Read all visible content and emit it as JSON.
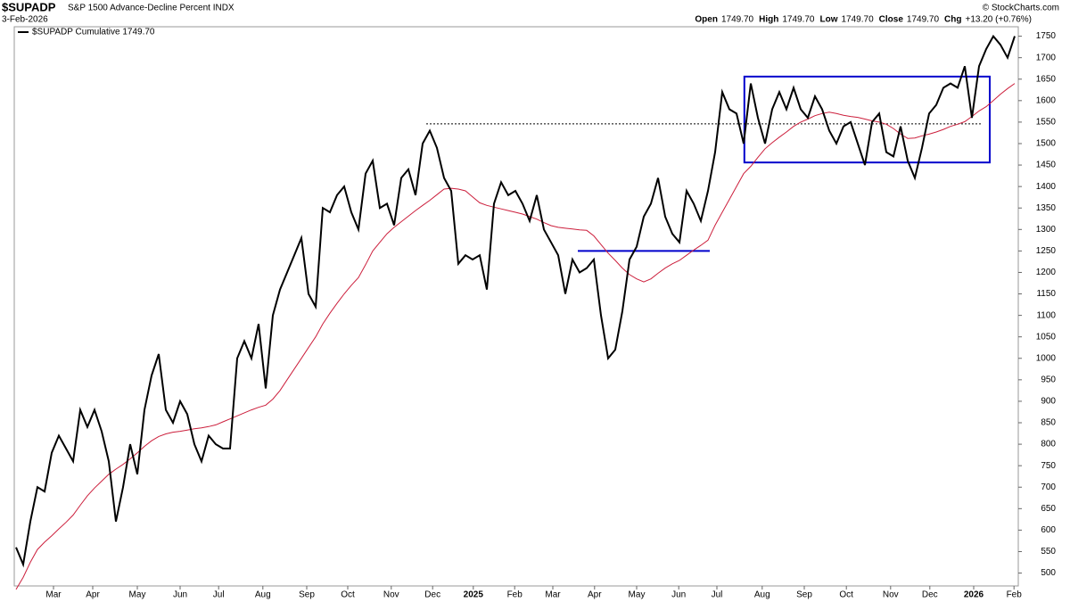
{
  "header": {
    "symbol": "$SUPADP",
    "description": "S&P 1500 Advance-Decline Percent INDX",
    "date": "3-Feb-2026",
    "quote": [
      {
        "label": "Open",
        "value": "1749.70"
      },
      {
        "label": "High",
        "value": "1749.70"
      },
      {
        "label": "Low",
        "value": "1749.70"
      },
      {
        "label": "Close",
        "value": "1749.70"
      },
      {
        "label": "Chg",
        "value": "+13.20 (+0.76%)"
      }
    ],
    "credit": "© StockCharts.com"
  },
  "chart_data": {
    "type": "line",
    "series": [
      {
        "name": "$SUPADP Cumulative 1749.70",
        "color": "#000000",
        "values": [
          560,
          520,
          620,
          700,
          690,
          780,
          820,
          790,
          760,
          880,
          840,
          880,
          830,
          760,
          620,
          700,
          800,
          730,
          880,
          960,
          1010,
          880,
          850,
          900,
          870,
          800,
          760,
          820,
          800,
          790,
          790,
          1000,
          1040,
          1000,
          1080,
          930,
          1100,
          1160,
          1200,
          1240,
          1280,
          1150,
          1120,
          1350,
          1340,
          1380,
          1400,
          1340,
          1300,
          1430,
          1460,
          1350,
          1360,
          1310,
          1420,
          1440,
          1380,
          1500,
          1530,
          1490,
          1420,
          1390,
          1220,
          1240,
          1230,
          1240,
          1160,
          1360,
          1410,
          1380,
          1390,
          1360,
          1320,
          1380,
          1300,
          1270,
          1240,
          1150,
          1230,
          1200,
          1210,
          1230,
          1100,
          1000,
          1020,
          1110,
          1230,
          1260,
          1330,
          1360,
          1420,
          1330,
          1290,
          1270,
          1390,
          1360,
          1320,
          1390,
          1480,
          1620,
          1580,
          1570,
          1500,
          1640,
          1560,
          1500,
          1580,
          1620,
          1580,
          1630,
          1580,
          1560,
          1610,
          1580,
          1530,
          1500,
          1540,
          1550,
          1500,
          1450,
          1550,
          1570,
          1480,
          1470,
          1540,
          1460,
          1420,
          1490,
          1570,
          1590,
          1630,
          1640,
          1630,
          1680,
          1560,
          1680,
          1720,
          1750,
          1730,
          1700,
          1750
        ]
      },
      {
        "color": "#cc1f3c",
        "values": [
          462,
          490,
          525,
          555,
          572,
          587,
          603,
          618,
          635,
          658,
          680,
          698,
          714,
          730,
          742,
          753,
          766,
          780,
          795,
          808,
          818,
          824,
          828,
          830,
          833,
          836,
          838,
          841,
          845,
          852,
          859,
          866,
          873,
          880,
          886,
          891,
          905,
          925,
          950,
          975,
          1000,
          1025,
          1050,
          1080,
          1105,
          1128,
          1150,
          1170,
          1188,
          1218,
          1250,
          1270,
          1290,
          1305,
          1318,
          1331,
          1344,
          1356,
          1368,
          1381,
          1394,
          1396,
          1394,
          1390,
          1376,
          1362,
          1356,
          1352,
          1348,
          1344,
          1340,
          1336,
          1330,
          1324,
          1316,
          1309,
          1305,
          1303,
          1301,
          1299,
          1298,
          1285,
          1265,
          1245,
          1228,
          1210,
          1195,
          1185,
          1178,
          1185,
          1198,
          1210,
          1220,
          1228,
          1240,
          1252,
          1263,
          1275,
          1310,
          1340,
          1370,
          1400,
          1430,
          1447,
          1468,
          1488,
          1502,
          1515,
          1527,
          1540,
          1550,
          1557,
          1565,
          1570,
          1573,
          1570,
          1566,
          1563,
          1561,
          1557,
          1553,
          1550,
          1545,
          1535,
          1522,
          1512,
          1513,
          1518,
          1522,
          1527,
          1533,
          1540,
          1545,
          1551,
          1563,
          1576,
          1586,
          1600,
          1615,
          1628,
          1640
        ]
      }
    ],
    "xlim": [
      -0.25,
      140.5
    ],
    "xticks": [
      {
        "value": 5.25,
        "label": "Mar"
      },
      {
        "value": 10.75,
        "label": "Apr"
      },
      {
        "value": 17,
        "label": "May"
      },
      {
        "value": 23,
        "label": "Jun"
      },
      {
        "value": 28.4,
        "label": "Jul"
      },
      {
        "value": 34.6,
        "label": "Aug"
      },
      {
        "value": 40.75,
        "label": "Sep"
      },
      {
        "value": 46.5,
        "label": "Oct"
      },
      {
        "value": 52.6,
        "label": "Nov"
      },
      {
        "value": 58.4,
        "label": "Dec"
      },
      {
        "value": 64.1,
        "label": "2025"
      },
      {
        "value": 69.9,
        "label": "Feb"
      },
      {
        "value": 75.25,
        "label": "Mar"
      },
      {
        "value": 81.1,
        "label": "Apr"
      },
      {
        "value": 87,
        "label": "May"
      },
      {
        "value": 92.9,
        "label": "Jun"
      },
      {
        "value": 98.25,
        "label": "Jul"
      },
      {
        "value": 104.6,
        "label": "Aug"
      },
      {
        "value": 110.5,
        "label": "Sep"
      },
      {
        "value": 116.4,
        "label": "Oct"
      },
      {
        "value": 122.6,
        "label": "Nov"
      },
      {
        "value": 128.1,
        "label": "Dec"
      },
      {
        "value": 134.25,
        "label": "2026"
      },
      {
        "value": 139.9,
        "label": "Feb"
      }
    ],
    "ylim": [
      470,
      1772
    ],
    "yticks": [
      500,
      550,
      600,
      650,
      700,
      750,
      800,
      850,
      900,
      950,
      1000,
      1050,
      1100,
      1150,
      1200,
      1250,
      1300,
      1350,
      1400,
      1450,
      1500,
      1550,
      1600,
      1650,
      1700,
      1750
    ],
    "annotations": [
      {
        "shape": "rect",
        "x": [
          102.1,
          136.5
        ],
        "y": [
          1456,
          1656
        ],
        "color": "#0000cc"
      },
      {
        "shape": "line",
        "x": [
          78.75,
          97.25
        ],
        "y": [
          1250,
          1250
        ],
        "color": "#0000cc"
      },
      {
        "shape": "dotted",
        "x": [
          57.5,
          135.25
        ],
        "y": [
          1546,
          1546
        ],
        "color": "#000000"
      }
    ]
  }
}
